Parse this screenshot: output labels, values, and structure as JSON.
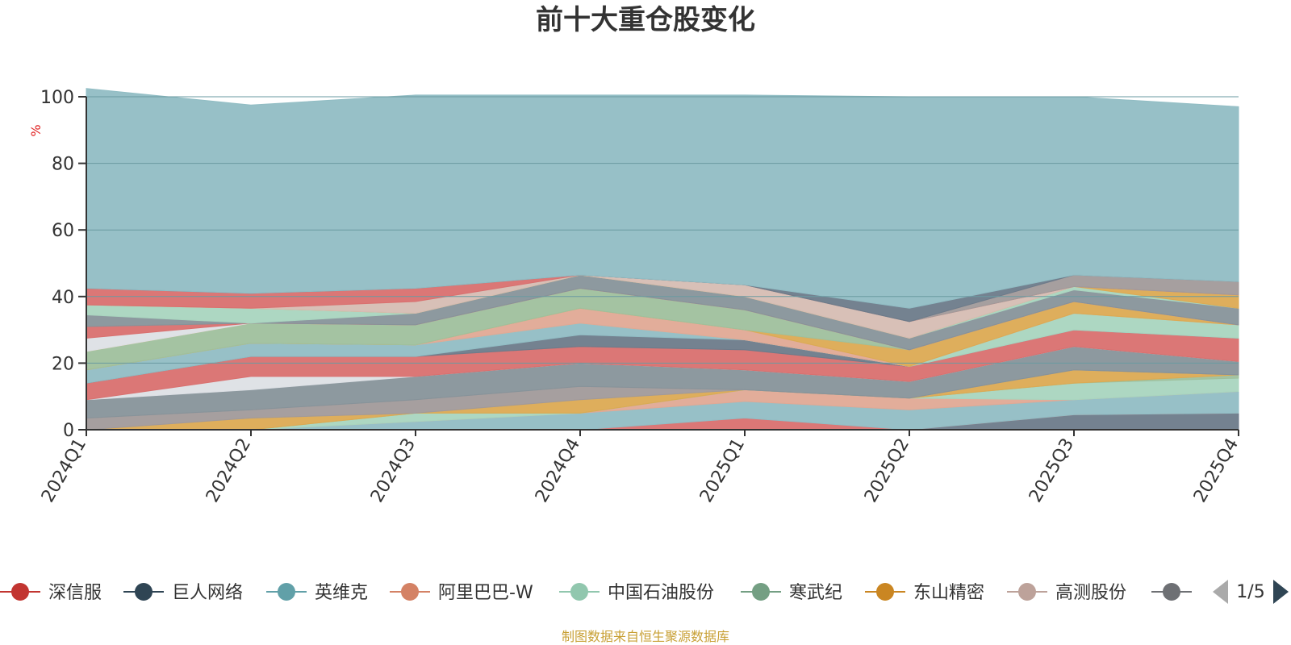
{
  "chart_data": {
    "type": "area",
    "stacked": true,
    "normalized_total": 100,
    "title": "前十大重仓股变化",
    "ylabel": "%",
    "ylim": [
      0,
      100
    ],
    "yticks": [
      0,
      20,
      40,
      60,
      80,
      100
    ],
    "categories": [
      "2024Q1",
      "2024Q2",
      "2024Q3",
      "2024Q4",
      "2025Q1",
      "2025Q2",
      "2025Q3",
      "2025Q4"
    ],
    "series": [
      {
        "name": "",
        "color": "#6d7b8a",
        "values": [
          0,
          0,
          0,
          0,
          0,
          0,
          4.5,
          5
        ]
      },
      {
        "name": "",
        "color": "#d9706f",
        "values": [
          0,
          0,
          0,
          0,
          3.5,
          0,
          0,
          0
        ]
      },
      {
        "name": "",
        "color": "#91bdc4",
        "values": [
          0,
          0,
          2.5,
          5,
          5,
          6,
          4.5,
          6.5
        ]
      },
      {
        "name": "",
        "color": "#e0a995",
        "values": [
          0,
          0,
          0,
          0,
          3.5,
          3.5,
          0,
          0
        ]
      },
      {
        "name": "",
        "color": "#a9d5bf",
        "values": [
          0,
          0,
          2.5,
          0,
          0,
          0,
          5,
          4
        ]
      },
      {
        "name": "",
        "color": "#9fc09d",
        "values": [
          0,
          0,
          0,
          0,
          0,
          0,
          0,
          1
        ]
      },
      {
        "name": "",
        "color": "#dcaa53",
        "values": [
          0,
          3.5,
          0,
          4,
          0,
          0,
          4,
          0
        ]
      },
      {
        "name": "",
        "color": "#a19a9a",
        "values": [
          3.5,
          2.5,
          4,
          4,
          0,
          0,
          0,
          0
        ]
      },
      {
        "name": "",
        "color": "#87939a",
        "values": [
          5.5,
          6,
          7,
          7,
          6,
          5,
          7,
          4
        ]
      },
      {
        "name": "",
        "color": "#dde0e5",
        "values": [
          0,
          4,
          0,
          0,
          0,
          0,
          0,
          0
        ]
      },
      {
        "name": "",
        "color": "#d9706f",
        "values": [
          5,
          6,
          6,
          5,
          6,
          4.5,
          5,
          7
        ]
      },
      {
        "name": "",
        "color": "#6d7b8a",
        "values": [
          0,
          0,
          0,
          3.5,
          3,
          0,
          0,
          0
        ]
      },
      {
        "name": "",
        "color": "#91bdc4",
        "values": [
          4,
          4,
          3.5,
          3.5,
          0,
          0,
          0,
          0
        ]
      },
      {
        "name": "",
        "color": "#a9d5bf",
        "values": [
          0,
          0,
          0,
          0,
          0,
          0,
          5,
          4
        ]
      },
      {
        "name": "",
        "color": "#e0a995",
        "values": [
          0,
          0,
          0,
          4.5,
          3,
          0,
          0,
          0
        ]
      },
      {
        "name": "",
        "color": "#dcaa53",
        "values": [
          0,
          0,
          0,
          0,
          0,
          5,
          3.5,
          0
        ]
      },
      {
        "name": "",
        "color": "#9fc09d",
        "values": [
          5.5,
          6,
          6,
          6,
          6,
          0,
          0,
          0
        ]
      },
      {
        "name": "",
        "color": "#dcaa53",
        "values": [
          0,
          0,
          0,
          0,
          0,
          0,
          0,
          0
        ]
      },
      {
        "name": "",
        "color": "#dde0e5",
        "values": [
          4,
          0,
          0,
          0,
          0,
          0,
          0,
          0
        ]
      },
      {
        "name": "",
        "color": "#d9706f",
        "values": [
          3.5,
          0,
          0,
          0,
          0,
          0,
          0,
          0
        ]
      },
      {
        "name": "",
        "color": "#87939a",
        "values": [
          3.5,
          0,
          3.5,
          4,
          4,
          3.5,
          3.5,
          5
        ]
      },
      {
        "name": "",
        "color": "#a9d5bf",
        "values": [
          3,
          4.5,
          0,
          0,
          0,
          0,
          1,
          0
        ]
      },
      {
        "name": "",
        "color": "#dcaa53",
        "values": [
          0,
          0,
          0,
          0,
          0,
          0,
          0,
          4
        ]
      },
      {
        "name": "",
        "color": "#d6bdb3",
        "values": [
          0,
          0,
          3.5,
          0,
          3.5,
          5,
          0,
          0
        ]
      },
      {
        "name": "",
        "color": "#d9706f",
        "values": [
          5,
          4.5,
          4,
          0,
          0,
          0,
          0,
          0
        ]
      },
      {
        "name": "",
        "color": "#a19a9a",
        "values": [
          0,
          0,
          0,
          0,
          0,
          0,
          3.5,
          4
        ]
      },
      {
        "name": "",
        "color": "#6d7b8a",
        "values": [
          0,
          0,
          0,
          0,
          0,
          4,
          0,
          0
        ]
      },
      {
        "name": "",
        "color": "#91bdc4",
        "values": [
          60,
          56.5,
          58,
          54,
          57,
          63.5,
          53.5,
          52.5
        ]
      }
    ],
    "legend": {
      "position": "bottom",
      "items": [
        {
          "name": "深信服",
          "color": "#c23531"
        },
        {
          "name": "巨人网络",
          "color": "#2f4554"
        },
        {
          "name": "英维克",
          "color": "#61a0a8"
        },
        {
          "name": "阿里巴巴-W",
          "color": "#d48265"
        },
        {
          "name": "中国石油股份",
          "color": "#91c7ae"
        },
        {
          "name": "寒武纪",
          "color": "#749f83"
        },
        {
          "name": "东山精密",
          "color": "#ca8622"
        },
        {
          "name": "高测股份",
          "color": "#bda29a"
        },
        {
          "name": "",
          "color": "#6e7074"
        }
      ],
      "page": "1/5"
    },
    "source": "制图数据来自恒生聚源数据库"
  }
}
